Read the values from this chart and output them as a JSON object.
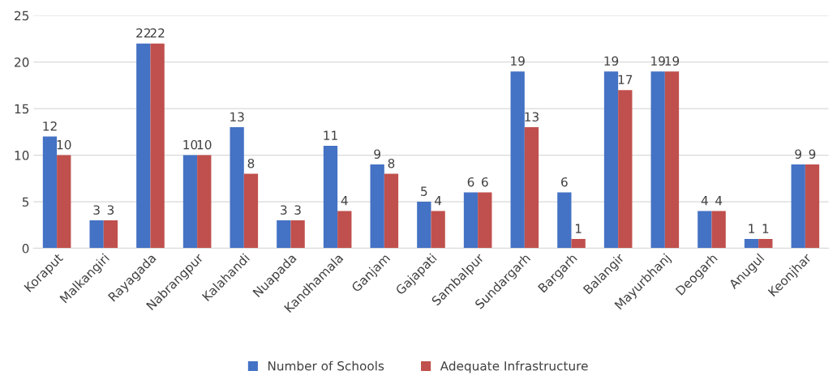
{
  "chart_data": {
    "type": "bar",
    "categories": [
      "Koraput",
      "Malkangiri",
      "Rayagada",
      "Nabrangpur",
      "Kalahandi",
      "Nuapada",
      "Kandhamala",
      "Ganjam",
      "Gajapati",
      "Sambalpur",
      "Sundargarh",
      "Bargarh",
      "Balangir",
      "Mayurbhanj",
      "Deogarh",
      "Anugul",
      "Keonjhar"
    ],
    "series": [
      {
        "name": "Number of Schools",
        "color": "#4472c4",
        "values": [
          12,
          3,
          22,
          10,
          13,
          3,
          11,
          9,
          5,
          6,
          19,
          6,
          19,
          19,
          4,
          1,
          9
        ]
      },
      {
        "name": "Adequate Infrastructure",
        "color": "#c0504d",
        "values": [
          10,
          3,
          22,
          10,
          8,
          3,
          4,
          8,
          4,
          6,
          13,
          1,
          17,
          19,
          4,
          1,
          9
        ]
      }
    ],
    "ylim": [
      0,
      25
    ],
    "yticks": [
      0,
      5,
      10,
      15,
      20,
      25
    ],
    "grid": "y",
    "legend": "bottom",
    "data_labels": true
  }
}
